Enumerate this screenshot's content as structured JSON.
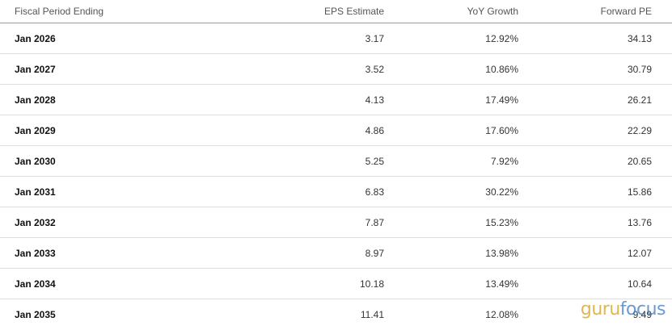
{
  "table": {
    "headers": [
      "Fiscal Period Ending",
      "EPS Estimate",
      "YoY Growth",
      "Forward PE"
    ],
    "rows": [
      [
        "Jan 2026",
        "3.17",
        "12.92%",
        "34.13"
      ],
      [
        "Jan 2027",
        "3.52",
        "10.86%",
        "30.79"
      ],
      [
        "Jan 2028",
        "4.13",
        "17.49%",
        "26.21"
      ],
      [
        "Jan 2029",
        "4.86",
        "17.60%",
        "22.29"
      ],
      [
        "Jan 2030",
        "5.25",
        "7.92%",
        "20.65"
      ],
      [
        "Jan 2031",
        "6.83",
        "30.22%",
        "15.86"
      ],
      [
        "Jan 2032",
        "7.87",
        "15.23%",
        "13.76"
      ],
      [
        "Jan 2033",
        "8.97",
        "13.98%",
        "12.07"
      ],
      [
        "Jan 2034",
        "10.18",
        "13.49%",
        "10.64"
      ],
      [
        "Jan 2035",
        "11.41",
        "12.08%",
        "9.49"
      ]
    ]
  },
  "watermark": {
    "part1": "guru",
    "part2": "focus",
    "colors": {
      "guru": "#d4a017",
      "focus": "#3a78c2"
    }
  }
}
